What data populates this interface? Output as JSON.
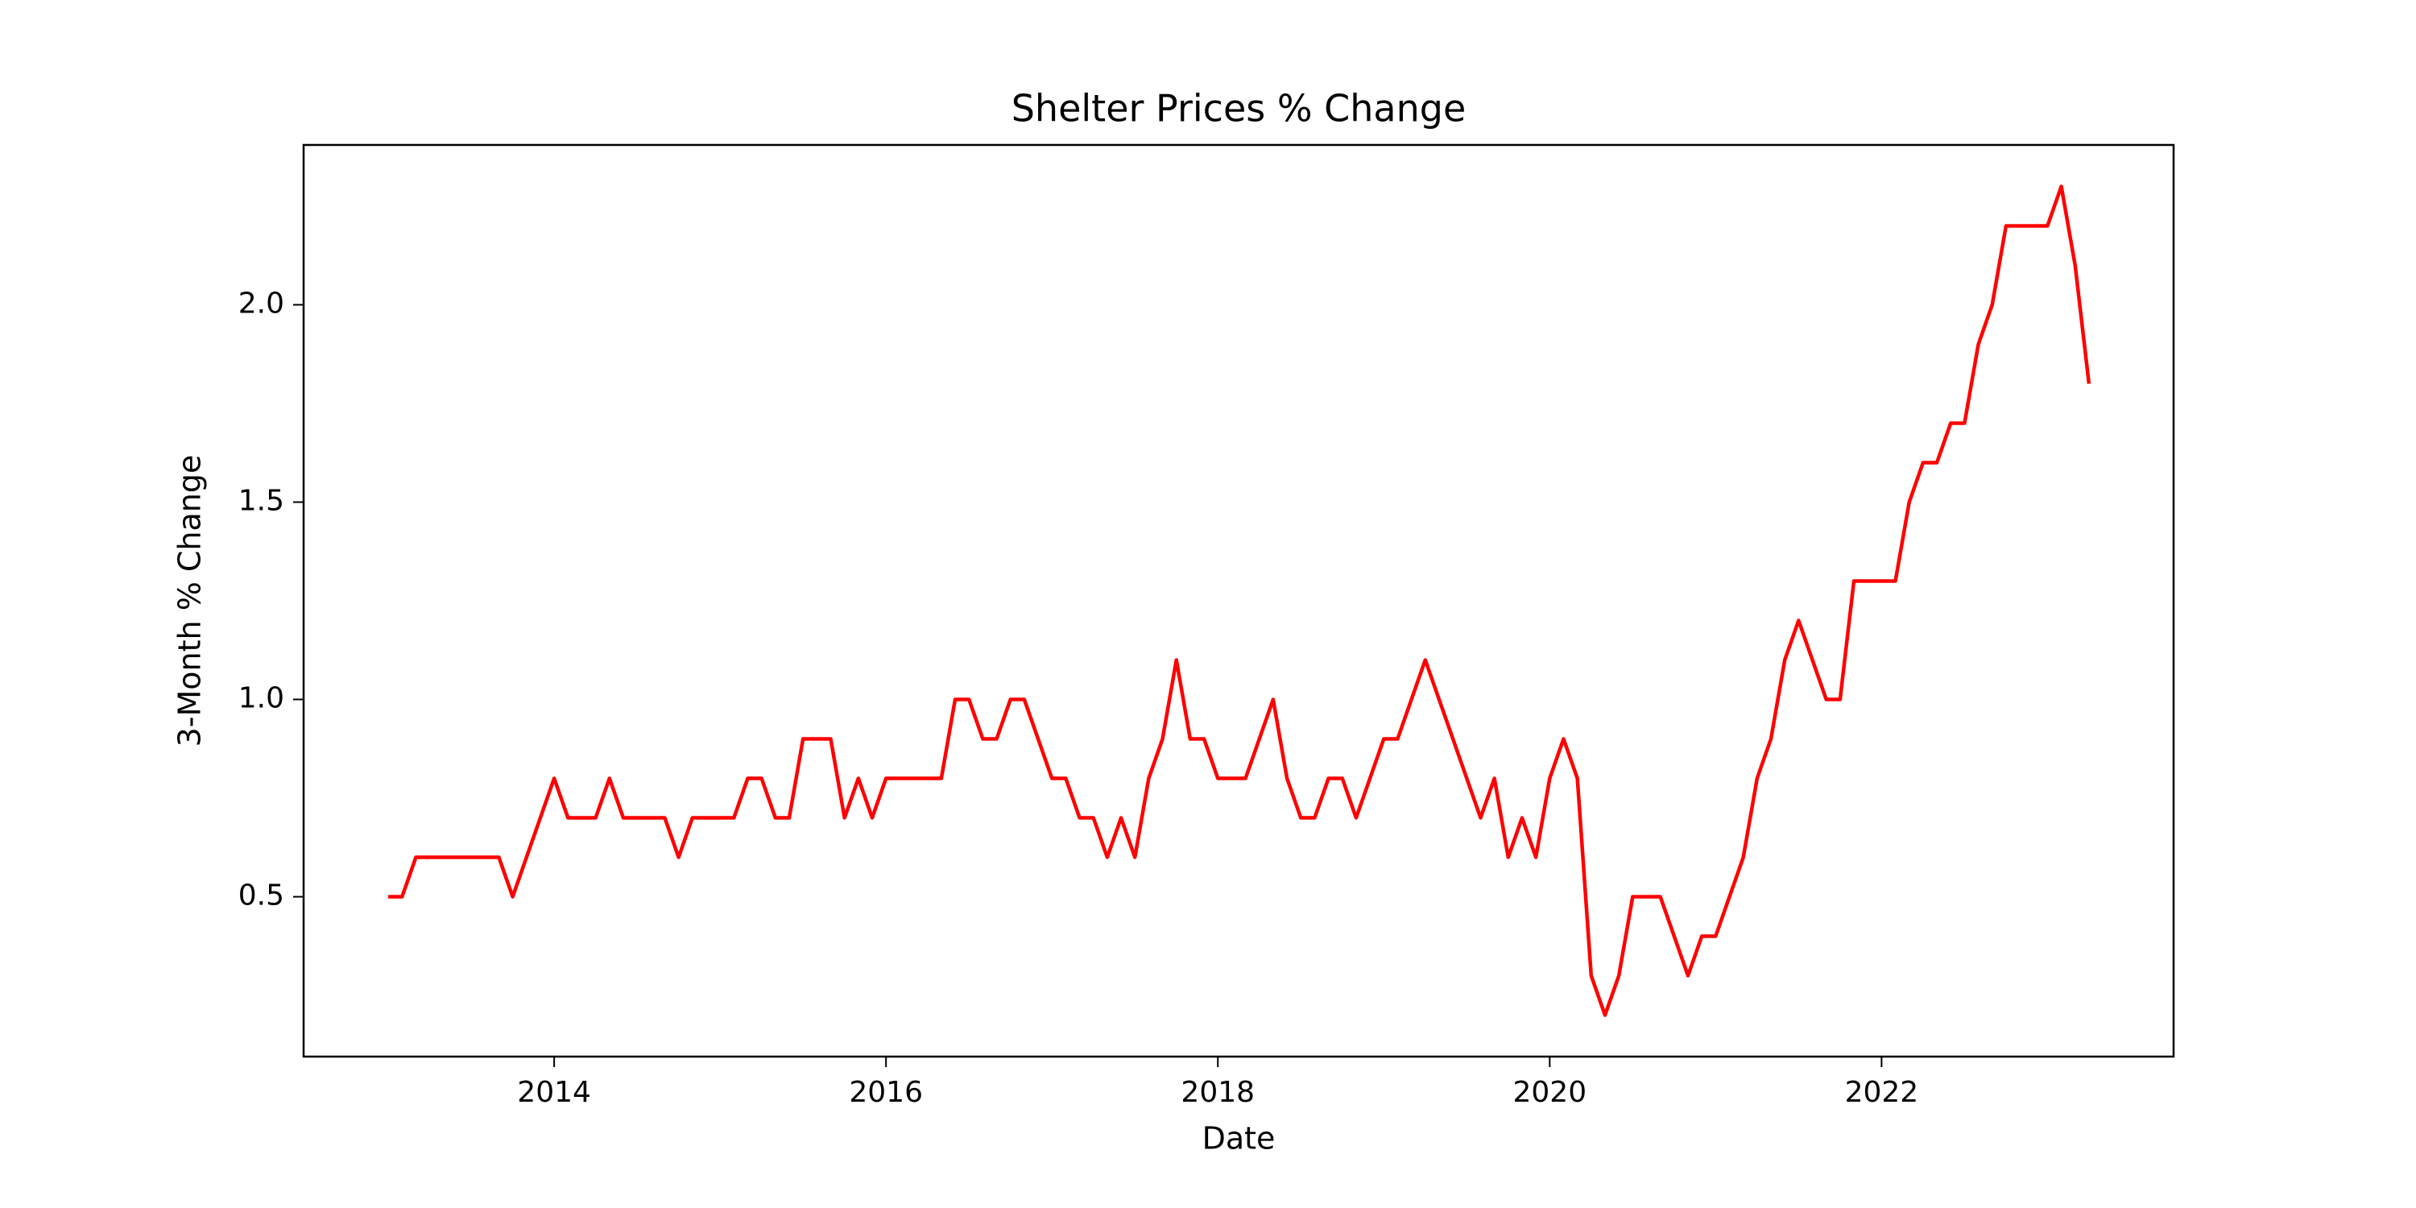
{
  "chart_data": {
    "type": "line",
    "title": "Shelter Prices % Change",
    "xlabel": "Date",
    "ylabel": "3-Month % Change",
    "color": "#ff0000",
    "x": [
      "2013-01",
      "2013-02",
      "2013-03",
      "2013-04",
      "2013-05",
      "2013-06",
      "2013-07",
      "2013-08",
      "2013-09",
      "2013-10",
      "2013-11",
      "2013-12",
      "2014-01",
      "2014-02",
      "2014-03",
      "2014-04",
      "2014-05",
      "2014-06",
      "2014-07",
      "2014-08",
      "2014-09",
      "2014-10",
      "2014-11",
      "2014-12",
      "2015-01",
      "2015-02",
      "2015-03",
      "2015-04",
      "2015-05",
      "2015-06",
      "2015-07",
      "2015-08",
      "2015-09",
      "2015-10",
      "2015-11",
      "2015-12",
      "2016-01",
      "2016-02",
      "2016-03",
      "2016-04",
      "2016-05",
      "2016-06",
      "2016-07",
      "2016-08",
      "2016-09",
      "2016-10",
      "2016-11",
      "2016-12",
      "2017-01",
      "2017-02",
      "2017-03",
      "2017-04",
      "2017-05",
      "2017-06",
      "2017-07",
      "2017-08",
      "2017-09",
      "2017-10",
      "2017-11",
      "2017-12",
      "2018-01",
      "2018-02",
      "2018-03",
      "2018-04",
      "2018-05",
      "2018-06",
      "2018-07",
      "2018-08",
      "2018-09",
      "2018-10",
      "2018-11",
      "2018-12",
      "2019-01",
      "2019-02",
      "2019-03",
      "2019-04",
      "2019-05",
      "2019-06",
      "2019-07",
      "2019-08",
      "2019-09",
      "2019-10",
      "2019-11",
      "2019-12",
      "2020-01",
      "2020-02",
      "2020-03",
      "2020-04",
      "2020-05",
      "2020-06",
      "2020-07",
      "2020-08",
      "2020-09",
      "2020-10",
      "2020-11",
      "2020-12",
      "2021-01",
      "2021-02",
      "2021-03",
      "2021-04",
      "2021-05",
      "2021-06",
      "2021-07",
      "2021-08",
      "2021-09",
      "2021-10",
      "2021-11",
      "2021-12",
      "2022-01",
      "2022-02",
      "2022-03",
      "2022-04",
      "2022-05",
      "2022-06",
      "2022-07",
      "2022-08",
      "2022-09",
      "2022-10",
      "2022-11",
      "2022-12",
      "2023-01",
      "2023-02",
      "2023-03",
      "2023-04"
    ],
    "values": [
      0.5,
      0.5,
      0.6,
      0.6,
      0.6,
      0.6,
      0.6,
      0.6,
      0.6,
      0.5,
      0.6,
      0.7,
      0.8,
      0.7,
      0.7,
      0.7,
      0.8,
      0.7,
      0.7,
      0.7,
      0.7,
      0.6,
      0.7,
      0.7,
      0.7,
      0.7,
      0.8,
      0.8,
      0.7,
      0.7,
      0.9,
      0.9,
      0.9,
      0.7,
      0.8,
      0.7,
      0.8,
      0.8,
      0.8,
      0.8,
      0.8,
      1.0,
      1.0,
      0.9,
      0.9,
      1.0,
      1.0,
      0.9,
      0.8,
      0.8,
      0.7,
      0.7,
      0.6,
      0.7,
      0.6,
      0.8,
      0.9,
      1.1,
      0.9,
      0.9,
      0.8,
      0.8,
      0.8,
      0.9,
      1.0,
      0.8,
      0.7,
      0.7,
      0.8,
      0.8,
      0.7,
      0.8,
      0.9,
      0.9,
      1.0,
      1.1,
      1.0,
      0.9,
      0.8,
      0.7,
      0.8,
      0.6,
      0.7,
      0.6,
      0.8,
      0.9,
      0.8,
      0.3,
      0.2,
      0.3,
      0.5,
      0.5,
      0.5,
      0.4,
      0.3,
      0.4,
      0.4,
      0.5,
      0.6,
      0.8,
      0.9,
      1.1,
      1.2,
      1.1,
      1.0,
      1.0,
      1.3,
      1.3,
      1.3,
      1.3,
      1.5,
      1.6,
      1.6,
      1.7,
      1.7,
      1.9,
      2.0,
      2.2,
      2.2,
      2.2,
      2.2,
      2.3,
      2.1,
      1.8
    ],
    "xlim": [
      2012.49,
      2023.76
    ],
    "xticks": [
      2014,
      2016,
      2018,
      2020,
      2022
    ],
    "ylim": [
      0.095,
      2.405
    ],
    "yticks": [
      0.5,
      {
        "value": 1.0,
        "label": "1.0"
      },
      1.5,
      {
        "value": 2.0,
        "label": "2.0"
      }
    ]
  }
}
